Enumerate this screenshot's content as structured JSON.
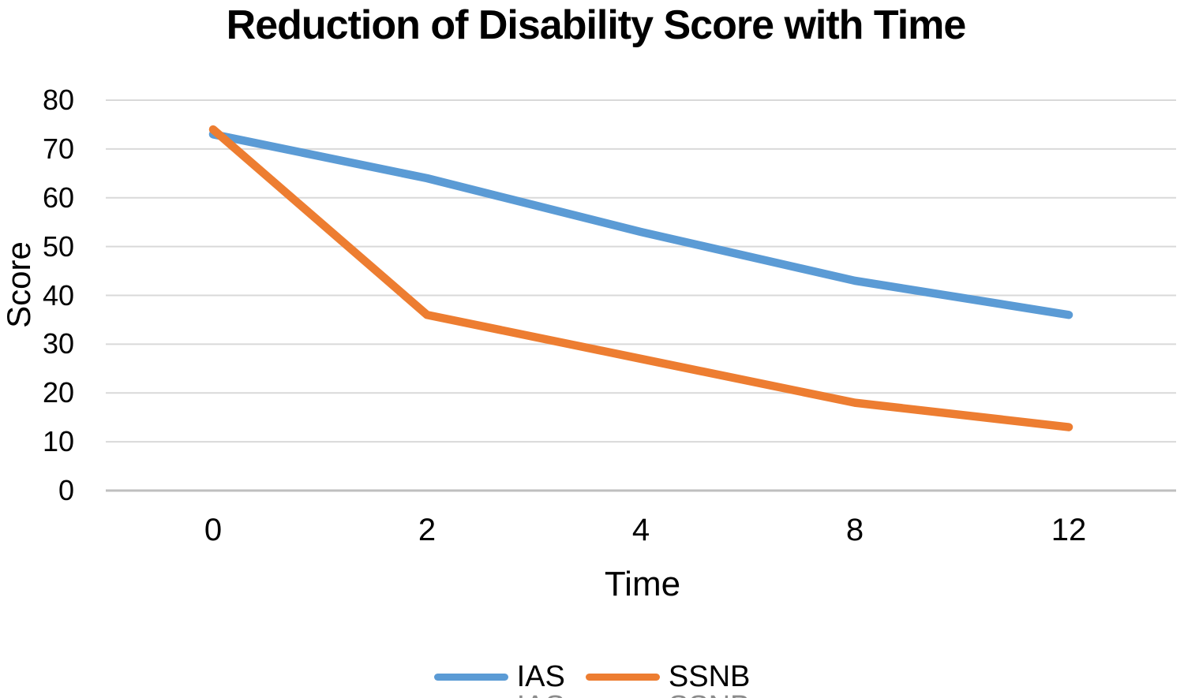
{
  "chart_data": {
    "type": "line",
    "title": "Reduction of Disability Score with Time",
    "xlabel": "Time",
    "ylabel": "Score",
    "categories": [
      "0",
      "2",
      "4",
      "8",
      "12"
    ],
    "series": [
      {
        "name": "IAS",
        "color": "#5B9BD5",
        "values": [
          73,
          64,
          53,
          43,
          36
        ]
      },
      {
        "name": "SSNB",
        "color": "#ED7D31",
        "values": [
          74,
          36,
          27,
          18,
          13
        ]
      }
    ],
    "ylim": [
      0,
      80
    ],
    "yticks": [
      80,
      70,
      60,
      50,
      40,
      30,
      20,
      10,
      0
    ],
    "grid": "horizontal-gridlines",
    "legend_position": "bottom-center"
  },
  "legend": {
    "items": [
      {
        "label": "IAS",
        "color": "#5B9BD5"
      },
      {
        "label": "SSNB",
        "color": "#ED7D31"
      }
    ],
    "clipped_duplicate_row_visible": true
  },
  "styles": {
    "gridline_color": "#D9D9D9",
    "axis_line_color": "#BFBFBF",
    "text_color": "#000000",
    "clipped_legend_text_color": "#8C8C8C"
  }
}
